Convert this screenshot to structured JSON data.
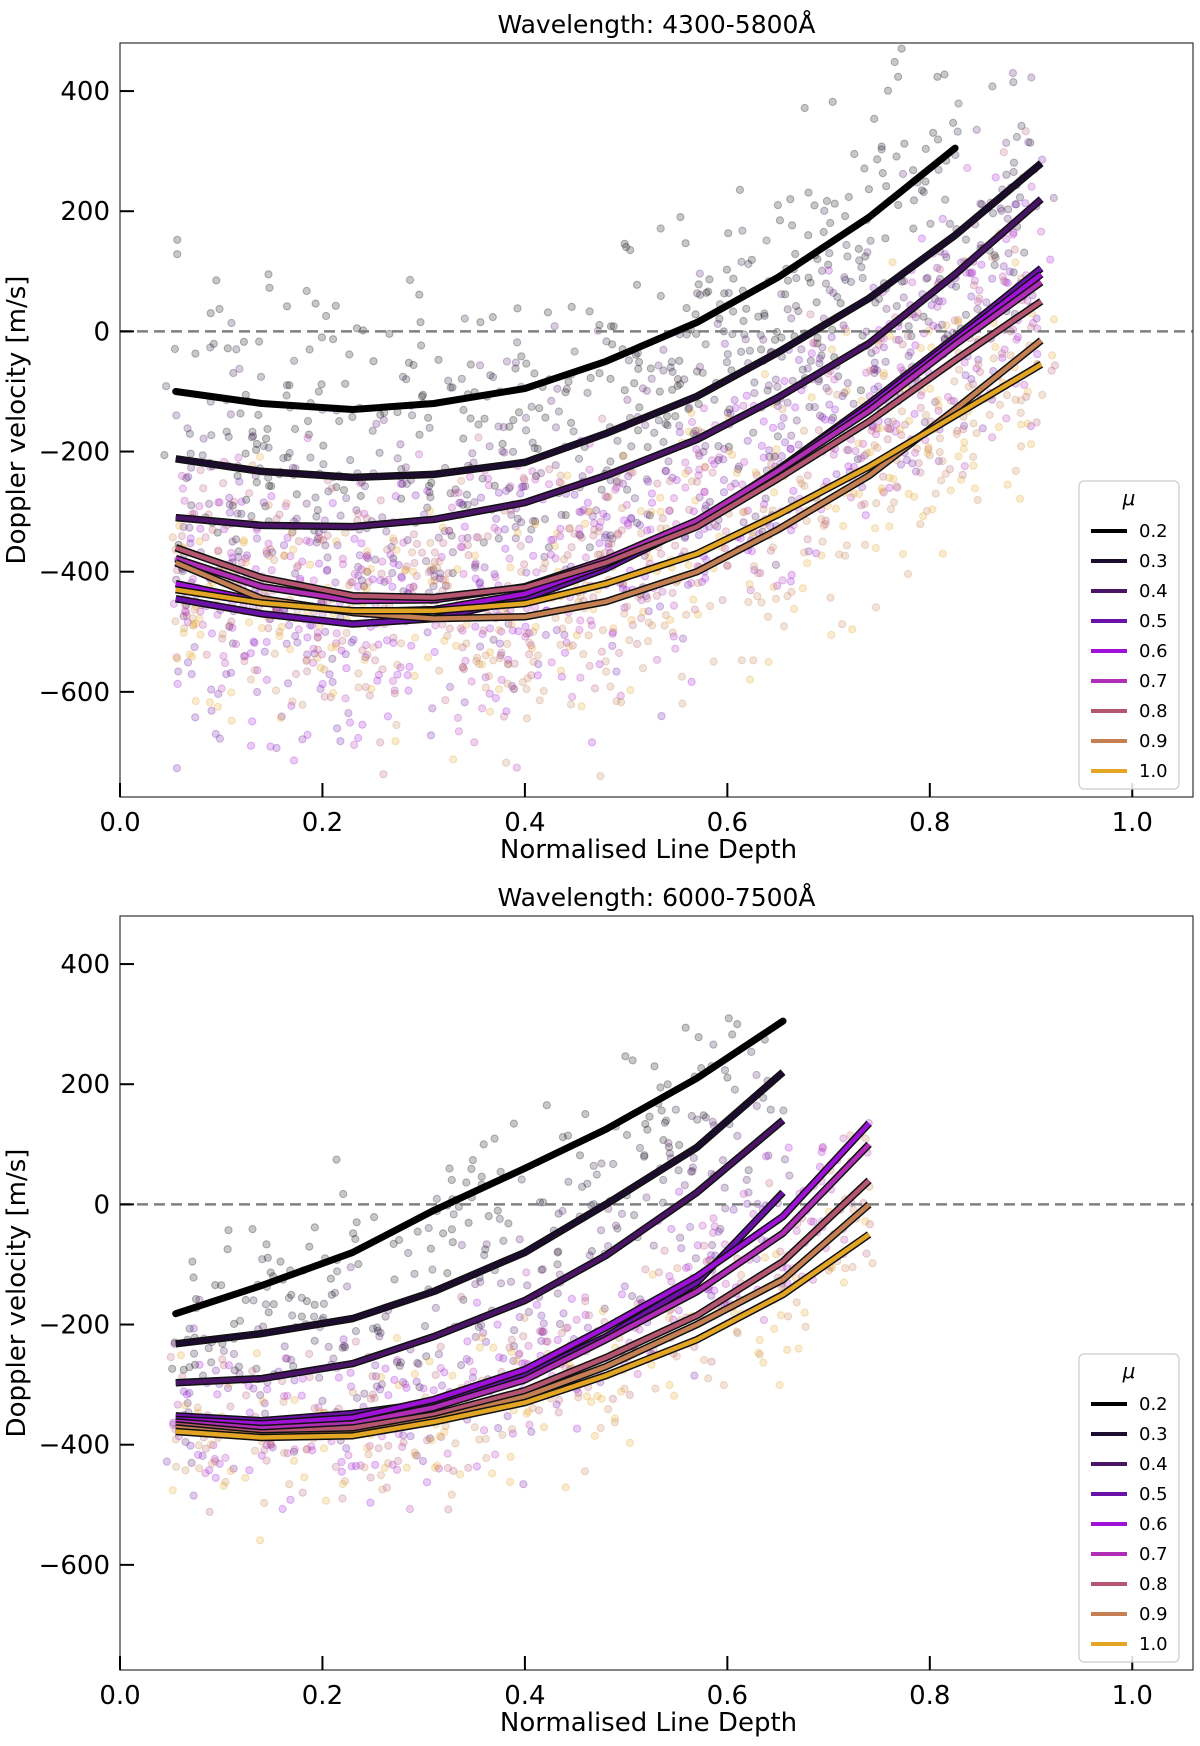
{
  "chart_data": [
    {
      "type": "line",
      "title": "Wavelength: 4300-5800Å",
      "xlabel": "Normalised Line Depth",
      "ylabel": "Doppler velocity [m/s]",
      "xlim": [
        0.0,
        1.06
      ],
      "ylim": [
        -775,
        480
      ],
      "xticks": [
        "0.0",
        "0.2",
        "0.4",
        "0.6",
        "0.8",
        "1.0"
      ],
      "yticks": [
        "400",
        "200",
        "0",
        "−200",
        "−400",
        "−600"
      ],
      "reference_line": 0,
      "legend": {
        "title": "μ",
        "placement": "lower-right"
      },
      "x": [
        0.055,
        0.14,
        0.23,
        0.31,
        0.4,
        0.48,
        0.57,
        0.65,
        0.74,
        0.825,
        0.91
      ],
      "series": [
        {
          "name": "0.2",
          "color": "#000000",
          "values": [
            -100,
            -120,
            -130,
            -120,
            -95,
            -50,
            15,
            90,
            190,
            305,
            null
          ]
        },
        {
          "name": "0.3",
          "color": "#1c0c2e",
          "values": [
            -212,
            -233,
            -243,
            -238,
            -218,
            -170,
            -108,
            -35,
            55,
            160,
            280
          ]
        },
        {
          "name": "0.4",
          "color": "#4a1466",
          "values": [
            -310,
            -323,
            -325,
            -313,
            -285,
            -240,
            -180,
            -110,
            -20,
            95,
            220
          ]
        },
        {
          "name": "0.5",
          "color": "#6a12a8",
          "values": [
            -445,
            -470,
            -487,
            -478,
            -445,
            -395,
            -320,
            -230,
            -120,
            -10,
            105
          ]
        },
        {
          "name": "0.6",
          "color": "#9d12d6",
          "values": [
            -420,
            -450,
            -467,
            -463,
            -437,
            -388,
            -318,
            -230,
            -125,
            -15,
            95
          ]
        },
        {
          "name": "0.7",
          "color": "#b02eb5",
          "values": [
            -378,
            -425,
            -448,
            -447,
            -425,
            -380,
            -315,
            -232,
            -132,
            -22,
            82
          ]
        },
        {
          "name": "0.8",
          "color": "#b55670",
          "values": [
            -360,
            -410,
            -440,
            -443,
            -426,
            -385,
            -325,
            -245,
            -150,
            -48,
            50
          ]
        },
        {
          "name": "0.9",
          "color": "#c48052",
          "values": [
            -385,
            -445,
            -468,
            -478,
            -475,
            -450,
            -400,
            -330,
            -240,
            -130,
            -15
          ]
        },
        {
          "name": "1.0",
          "color": "#e3a524",
          "values": [
            -430,
            -452,
            -465,
            -465,
            -453,
            -420,
            -370,
            -305,
            -225,
            -140,
            -55
          ]
        }
      ]
    },
    {
      "type": "line",
      "title": "Wavelength: 6000-7500Å",
      "xlabel": "Normalised Line Depth",
      "ylabel": "Doppler velocity [m/s]",
      "xlim": [
        0.0,
        1.06
      ],
      "ylim": [
        -775,
        480
      ],
      "xticks": [
        "0.0",
        "0.2",
        "0.4",
        "0.6",
        "0.8",
        "1.0"
      ],
      "yticks": [
        "400",
        "200",
        "0",
        "−200",
        "−400",
        "−600"
      ],
      "reference_line": 0,
      "legend": {
        "title": "μ",
        "placement": "lower-right"
      },
      "x": [
        0.055,
        0.14,
        0.23,
        0.31,
        0.4,
        0.48,
        0.57,
        0.655,
        0.74
      ],
      "series": [
        {
          "name": "0.2",
          "color": "#000000",
          "values": [
            -182,
            -135,
            -80,
            -10,
            60,
            125,
            210,
            305,
            null
          ]
        },
        {
          "name": "0.3",
          "color": "#1c0c2e",
          "values": [
            -232,
            -215,
            -190,
            -145,
            -80,
            0,
            95,
            220,
            null
          ]
        },
        {
          "name": "0.4",
          "color": "#4a1466",
          "values": [
            -297,
            -290,
            -265,
            -220,
            -160,
            -85,
            20,
            140,
            null
          ]
        },
        {
          "name": "0.5",
          "color": "#6a12a8",
          "values": [
            -352,
            -360,
            -348,
            -330,
            -285,
            -220,
            -130,
            20,
            null
          ]
        },
        {
          "name": "0.6",
          "color": "#9d12d6",
          "values": [
            -358,
            -365,
            -355,
            -325,
            -275,
            -205,
            -120,
            -20,
            135
          ]
        },
        {
          "name": "0.7",
          "color": "#b02eb5",
          "values": [
            -362,
            -373,
            -365,
            -338,
            -292,
            -225,
            -145,
            -48,
            100
          ]
        },
        {
          "name": "0.8",
          "color": "#b55670",
          "values": [
            -367,
            -380,
            -372,
            -350,
            -310,
            -255,
            -185,
            -95,
            40
          ]
        },
        {
          "name": "0.9",
          "color": "#c48052",
          "values": [
            -372,
            -385,
            -382,
            -358,
            -320,
            -270,
            -200,
            -125,
            0
          ]
        },
        {
          "name": "1.0",
          "color": "#e3a524",
          "values": [
            -378,
            -388,
            -385,
            -362,
            -330,
            -285,
            -225,
            -150,
            -50
          ]
        }
      ]
    }
  ]
}
